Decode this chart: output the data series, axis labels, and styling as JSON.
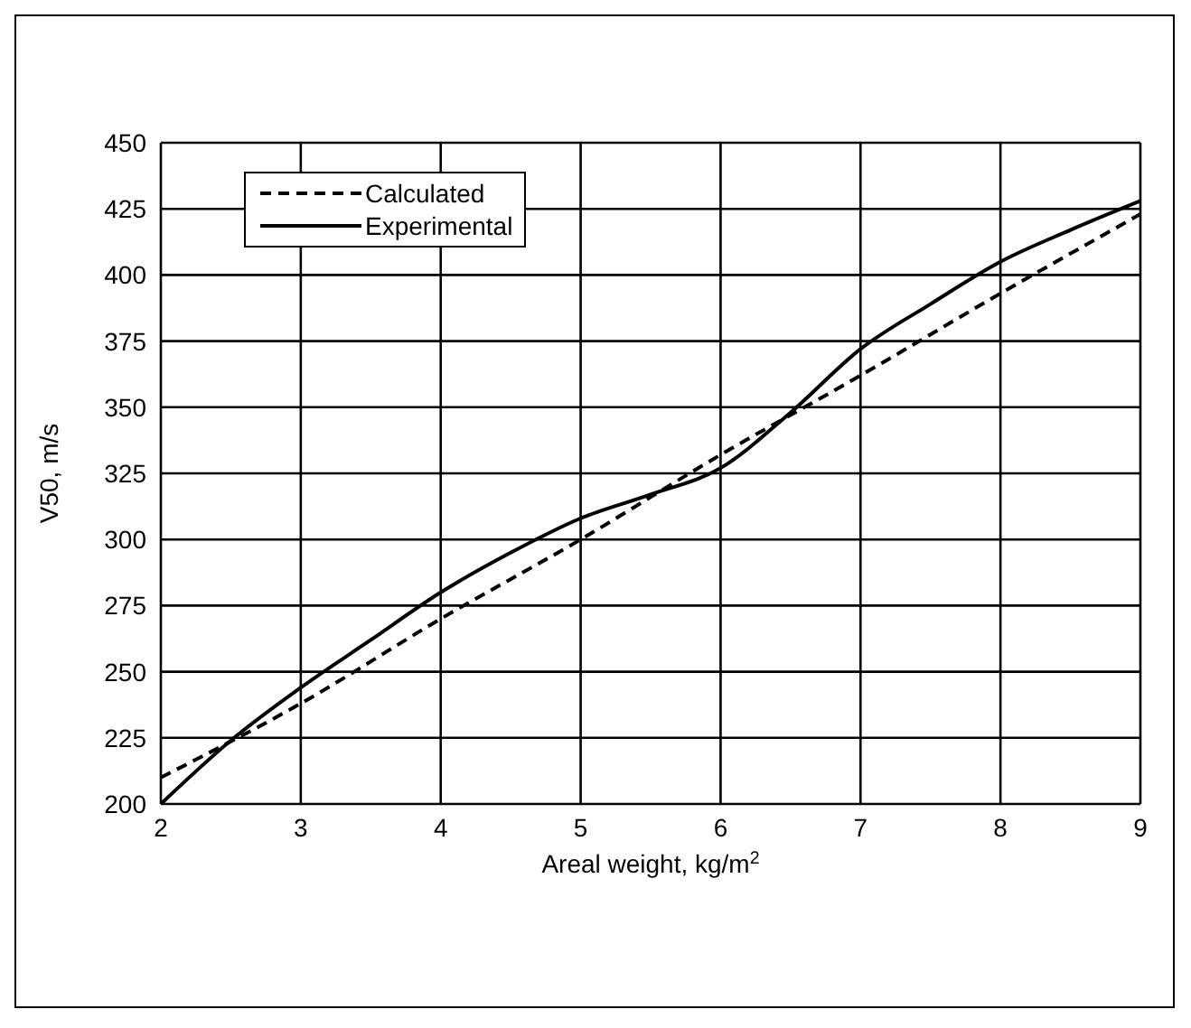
{
  "chart_data": {
    "type": "line",
    "xlabel": "Areal weight, kg/m$^{2}$",
    "ylabel": "V50, m/s",
    "xlim": [
      2,
      9
    ],
    "xticks": [
      2,
      3,
      4,
      5,
      6,
      7,
      8,
      9
    ],
    "ylim": [
      200,
      450
    ],
    "yticks": [
      200,
      225,
      250,
      275,
      300,
      325,
      350,
      375,
      400,
      425,
      450
    ],
    "grid": true,
    "legend": "top left",
    "marker": "none",
    "series": [
      {
        "name": "Calculated",
        "color": "#000000",
        "line_style": "dashed",
        "x": [
          2,
          3,
          4,
          5,
          6,
          7,
          8,
          9
        ],
        "values": [
          210,
          238,
          270,
          300,
          332,
          362,
          393,
          423
        ]
      },
      {
        "name": "Experimental",
        "color": "#000000",
        "line_style": "solid",
        "x": [
          2,
          2.5,
          3,
          3.5,
          4,
          4.5,
          5,
          5.5,
          6,
          6.5,
          7,
          7.5,
          8,
          8.5,
          9
        ],
        "values": [
          200,
          224,
          244,
          262,
          280,
          295,
          308,
          317,
          327,
          348,
          372,
          389,
          405,
          417,
          428
        ]
      }
    ]
  }
}
